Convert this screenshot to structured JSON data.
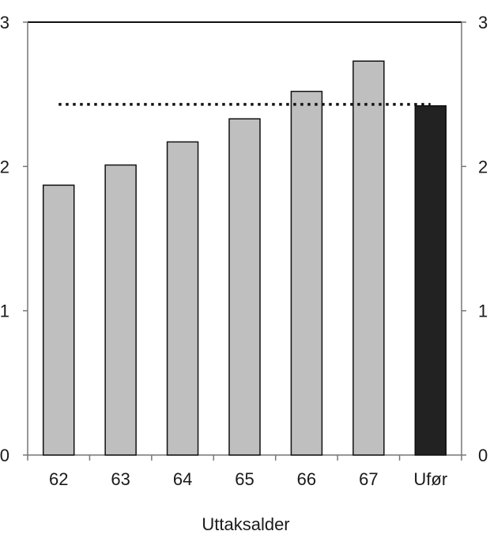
{
  "chart_data": {
    "type": "bar",
    "categories": [
      "62",
      "63",
      "64",
      "65",
      "66",
      "67",
      "Ufør"
    ],
    "values": [
      1.87,
      2.01,
      2.17,
      2.33,
      2.52,
      2.73,
      2.42
    ],
    "bar_colors": [
      "#bfbfbf",
      "#bfbfbf",
      "#bfbfbf",
      "#bfbfbf",
      "#bfbfbf",
      "#bfbfbf",
      "#222222"
    ],
    "reference_line": {
      "value": 2.43,
      "style": "dotted",
      "color": "#111111"
    },
    "xlabel": "Uttaksalder",
    "ylabel": "",
    "ylim": [
      0,
      3
    ],
    "y_ticks": [
      0,
      1,
      2,
      3
    ],
    "y_tick_labels_left": [
      "0",
      "1",
      "2",
      "3"
    ],
    "y_tick_labels_right": [
      "0",
      "1",
      "2",
      "3"
    ],
    "grid": false,
    "legend": "none"
  }
}
